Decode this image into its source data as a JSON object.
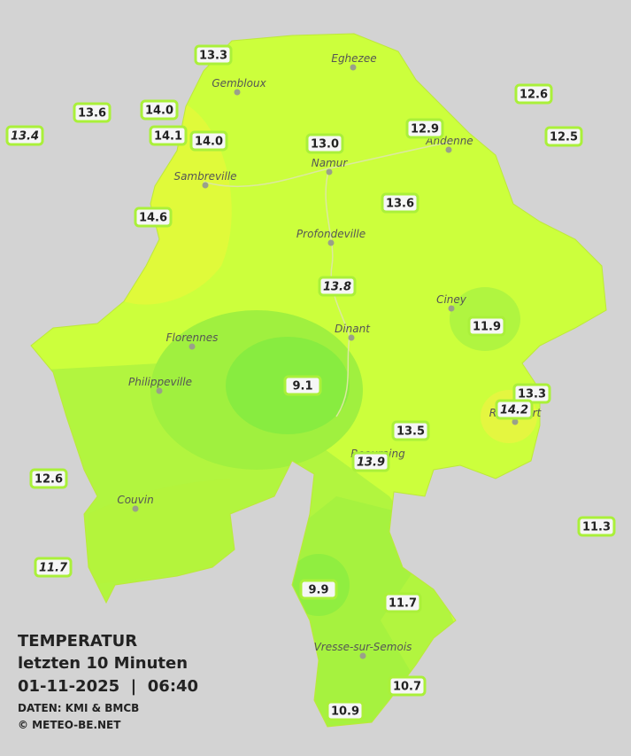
{
  "legend": {
    "title": "TEMPERATUR",
    "period": "letzten 10 Minuten",
    "timestamp": "01-11-2025  |  06:40",
    "source": "DATEN: KMI & BMCB",
    "copyright": "© METEO-BE.NET"
  },
  "cities": [
    "Eghezee",
    "Gembloux",
    "Andenne",
    "Namur",
    "Sambreville",
    "Profondeville",
    "Ciney",
    "Dinant",
    "Florennes",
    "Philippeville",
    "Rochefort",
    "Beauraing",
    "Couvin",
    "Vresse-sur-Semois"
  ],
  "stations": [
    "13.3",
    "13.6",
    "14.0",
    "14.1",
    "14.0",
    "13.4",
    "12.6",
    "12.5",
    "12.9",
    "13.0",
    "13.6",
    "14.6",
    "13.8",
    "11.9",
    "9.1",
    "13.3",
    "14.2",
    "13.5",
    "13.9",
    "12.6",
    "11.3",
    "11.7",
    "9.9",
    "11.7",
    "10.7",
    "10.9"
  ]
}
